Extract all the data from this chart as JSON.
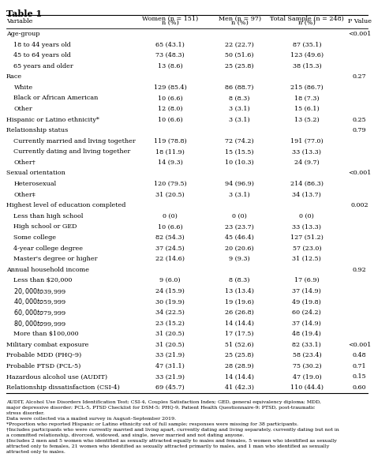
{
  "title": "Table 1",
  "headers": [
    "Variable",
    "Women (n = 151)\nn (%)",
    "Men (n = 97)\nn (%)",
    "Total Sample (n = 248)\nn (%)",
    "P Value"
  ],
  "rows": [
    {
      "label": "Age-group",
      "indent": 0,
      "women": "",
      "men": "",
      "total": "",
      "pval": "<0.001"
    },
    {
      "label": "18 to 44 years old",
      "indent": 1,
      "women": "65 (43.1)",
      "men": "22 (22.7)",
      "total": "87 (35.1)",
      "pval": ""
    },
    {
      "label": "45 to 64 years old",
      "indent": 1,
      "women": "73 (48.3)",
      "men": "50 (51.6)",
      "total": "123 (49.6)",
      "pval": ""
    },
    {
      "label": "65 years and older",
      "indent": 1,
      "women": "13 (8.6)",
      "men": "25 (25.8)",
      "total": "38 (15.3)",
      "pval": ""
    },
    {
      "label": "Race",
      "indent": 0,
      "women": "",
      "men": "",
      "total": "",
      "pval": "0.27"
    },
    {
      "label": "White",
      "indent": 1,
      "women": "129 (85.4)",
      "men": "86 (88.7)",
      "total": "215 (86.7)",
      "pval": ""
    },
    {
      "label": "Black or African American",
      "indent": 1,
      "women": "10 (6.6)",
      "men": "8 (8.3)",
      "total": "18 (7.3)",
      "pval": ""
    },
    {
      "label": "Other",
      "indent": 1,
      "women": "12 (8.0)",
      "men": "3 (3.1)",
      "total": "15 (6.1)",
      "pval": ""
    },
    {
      "label": "Hispanic or Latino ethnicity*",
      "indent": 0,
      "women": "10 (6.6)",
      "men": "3 (3.1)",
      "total": "13 (5.2)",
      "pval": "0.25"
    },
    {
      "label": "Relationship status",
      "indent": 0,
      "women": "",
      "men": "",
      "total": "",
      "pval": "0.79"
    },
    {
      "label": "Currently married and living together",
      "indent": 1,
      "women": "119 (78.8)",
      "men": "72 (74.2)",
      "total": "191 (77.0)",
      "pval": ""
    },
    {
      "label": "Currently dating and living together",
      "indent": 1,
      "women": "18 (11.9)",
      "men": "15 (15.5)",
      "total": "33 (13.3)",
      "pval": ""
    },
    {
      "label": "Other†",
      "indent": 1,
      "women": "14 (9.3)",
      "men": "10 (10.3)",
      "total": "24 (9.7)",
      "pval": ""
    },
    {
      "label": "Sexual orientation",
      "indent": 0,
      "women": "",
      "men": "",
      "total": "",
      "pval": "<0.001"
    },
    {
      "label": "Heterosexual",
      "indent": 1,
      "women": "120 (79.5)",
      "men": "94 (96.9)",
      "total": "214 (86.3)",
      "pval": ""
    },
    {
      "label": "Other‡",
      "indent": 1,
      "women": "31 (20.5)",
      "men": "3 (3.1)",
      "total": "34 (13.7)",
      "pval": ""
    },
    {
      "label": "Highest level of education completed",
      "indent": 0,
      "women": "",
      "men": "",
      "total": "",
      "pval": "0.002"
    },
    {
      "label": "Less than high school",
      "indent": 1,
      "women": "0 (0)",
      "men": "0 (0)",
      "total": "0 (0)",
      "pval": ""
    },
    {
      "label": "High school or GED",
      "indent": 1,
      "women": "10 (6.6)",
      "men": "23 (23.7)",
      "total": "33 (13.3)",
      "pval": ""
    },
    {
      "label": "Some college",
      "indent": 1,
      "women": "82 (54.3)",
      "men": "45 (46.4)",
      "total": "127 (51.2)",
      "pval": ""
    },
    {
      "label": "4-year college degree",
      "indent": 1,
      "women": "37 (24.5)",
      "men": "20 (20.6)",
      "total": "57 (23.0)",
      "pval": ""
    },
    {
      "label": "Master's degree or higher",
      "indent": 1,
      "women": "22 (14.6)",
      "men": "9 (9.3)",
      "total": "31 (12.5)",
      "pval": ""
    },
    {
      "label": "Annual household income",
      "indent": 0,
      "women": "",
      "men": "",
      "total": "",
      "pval": "0.92"
    },
    {
      "label": "Less than $20,000",
      "indent": 1,
      "women": "9 (6.0)",
      "men": "8 (8.3)",
      "total": "17 (6.9)",
      "pval": ""
    },
    {
      "label": "$20,000 to $39,999",
      "indent": 1,
      "women": "24 (15.9)",
      "men": "13 (13.4)",
      "total": "37 (14.9)",
      "pval": ""
    },
    {
      "label": "$40,000 to $59,999",
      "indent": 1,
      "women": "30 (19.9)",
      "men": "19 (19.6)",
      "total": "49 (19.8)",
      "pval": ""
    },
    {
      "label": "$60,000 to $79,999",
      "indent": 1,
      "women": "34 (22.5)",
      "men": "26 (26.8)",
      "total": "60 (24.2)",
      "pval": ""
    },
    {
      "label": "$80,000 to $99,999",
      "indent": 1,
      "women": "23 (15.2)",
      "men": "14 (14.4)",
      "total": "37 (14.9)",
      "pval": ""
    },
    {
      "label": "More than $100,000",
      "indent": 1,
      "women": "31 (20.5)",
      "men": "17 (17.5)",
      "total": "48 (19.4)",
      "pval": ""
    },
    {
      "label": "Military combat exposure",
      "indent": 0,
      "women": "31 (20.5)",
      "men": "51 (52.6)",
      "total": "82 (33.1)",
      "pval": "<0.001"
    },
    {
      "label": "Probable MDD (PHQ-9)",
      "indent": 0,
      "women": "33 (21.9)",
      "men": "25 (25.8)",
      "total": "58 (23.4)",
      "pval": "0.48"
    },
    {
      "label": "Probable PTSD (PCL-5)",
      "indent": 0,
      "women": "47 (31.1)",
      "men": "28 (28.9)",
      "total": "75 (30.2)",
      "pval": "0.71"
    },
    {
      "label": "Hazardous alcohol use (AUDIT)",
      "indent": 0,
      "women": "33 (21.9)",
      "men": "14 (14.4)",
      "total": "47 (19.0)",
      "pval": "0.15"
    },
    {
      "label": "Relationship dissatisfaction (CSI-4)",
      "indent": 0,
      "women": "69 (45.7)",
      "men": "41 (42.3)",
      "total": "110 (44.4)",
      "pval": "0.60"
    }
  ],
  "footnotes": [
    "AUDIT, Alcohol Use Disorders Identification Test; CSI-4, Couples Satisfaction Index; GED, general equivalency diploma; MDD,",
    "major depressive disorder; PCL-5, PTSD Checklist for DSM-5; PHQ-9, Patient Health Questionnaire-9; PTSD, post-traumatic",
    "stress disorder.",
    "Data were collected via a mailed survey in August–September 2019.",
    "*Proportion who reported Hispanic or Latino ethnicity out of full sample; responses were missing for 38 participants.",
    "†Includes participants who were currently married and living apart, currently dating and living separately, currently dating but not in",
    "a committed relationship, divorced, widowed, and single, never married and not dating anyone.",
    "‡Includes 2 men and 5 women who identified as sexually attracted equally to males and females, 5 women who identified as sexually",
    "attracted only to females, 21 women who identified as sexually attracted primarily to males, and 1 man who identified as sexually",
    "attracted only to males."
  ],
  "font_size": 5.8,
  "header_font_size": 5.8,
  "title_font_size": 8.0,
  "footnote_font_size": 4.5
}
